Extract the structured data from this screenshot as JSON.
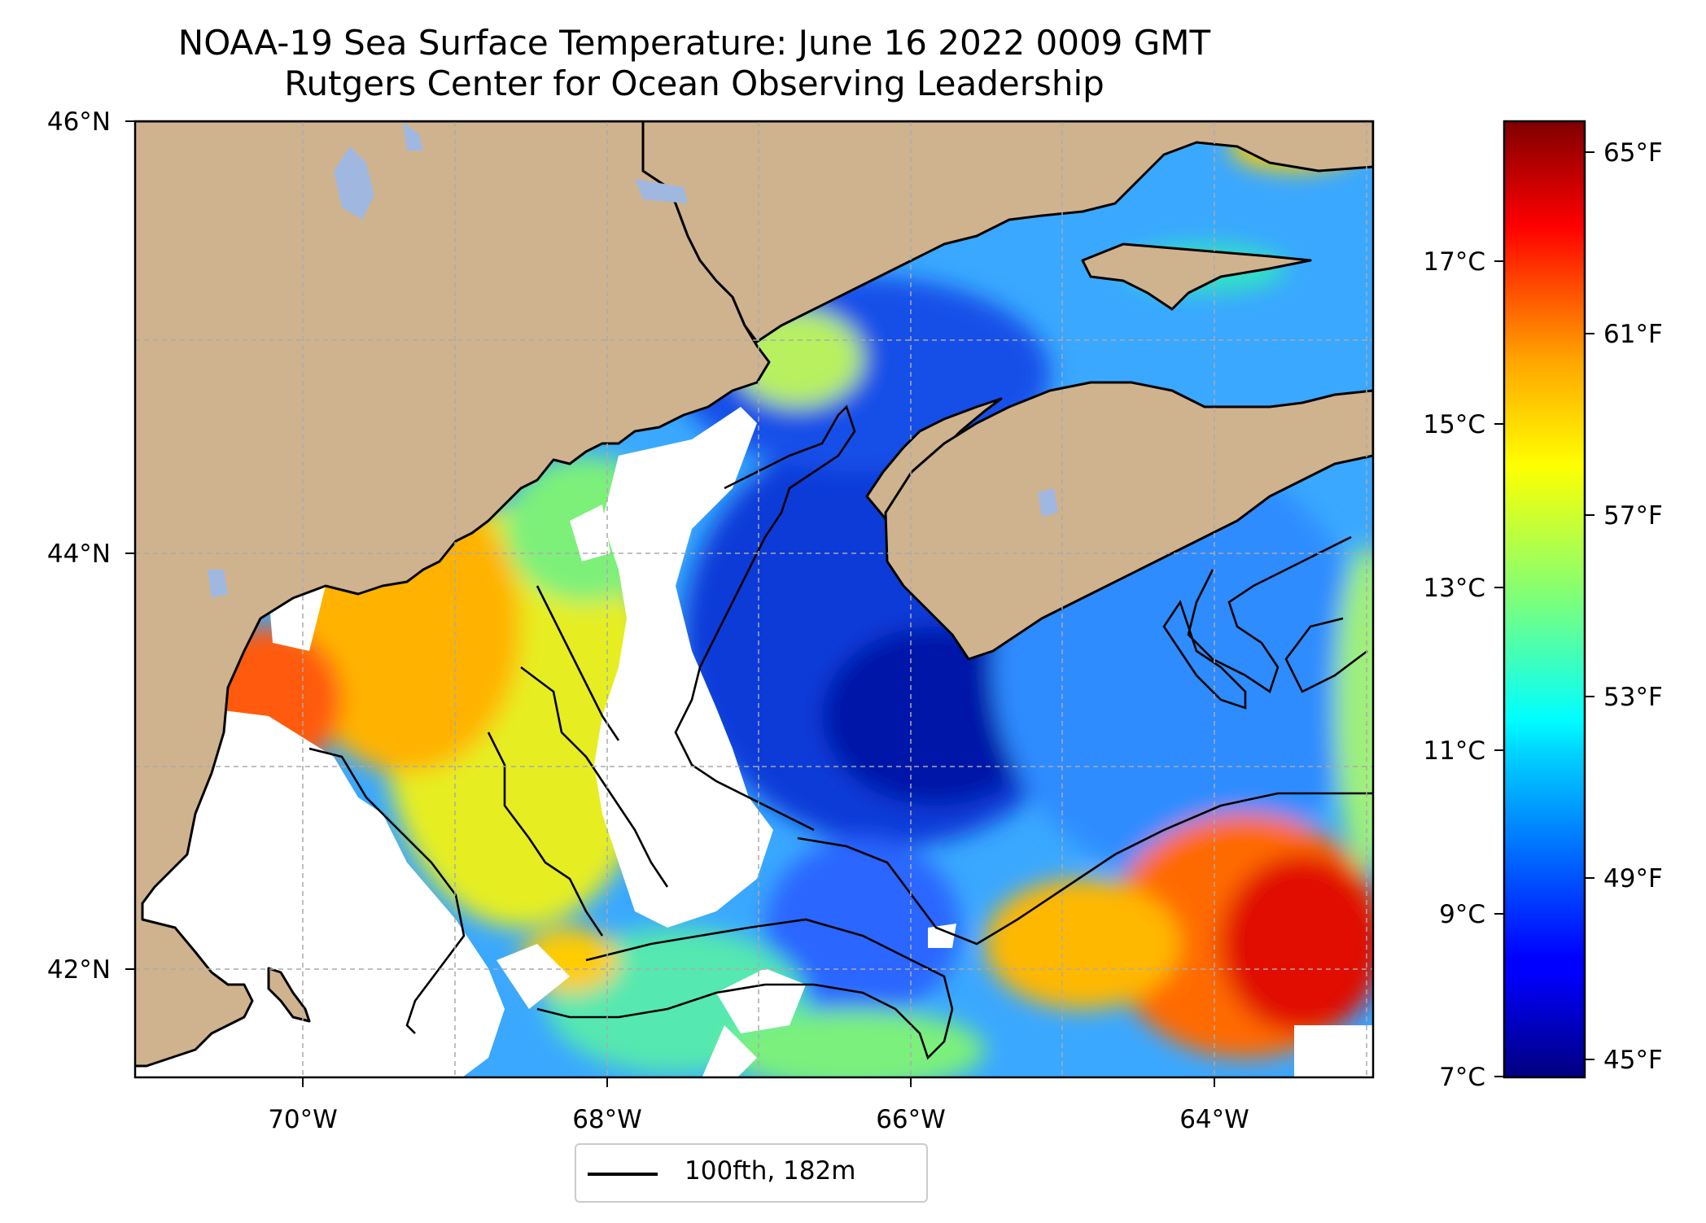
{
  "title": {
    "line1": "NOAA-19 Sea Surface Temperature: June 16 2022 0009 GMT",
    "line2": "Rutgers Center for Ocean Observing Leadership"
  },
  "map": {
    "lon_range": [
      -71.1,
      -62.9
    ],
    "lat_range": [
      41.5,
      46.0
    ],
    "lon_ticks": [
      {
        "value": -70,
        "label": "70°W"
      },
      {
        "value": -68,
        "label": "68°W"
      },
      {
        "value": -66,
        "label": "66°W"
      },
      {
        "value": -64,
        "label": "64°W"
      }
    ],
    "lat_ticks": [
      {
        "value": 46,
        "label": "46°N"
      },
      {
        "value": 44,
        "label": "44°N"
      },
      {
        "value": 42,
        "label": "42°N"
      }
    ],
    "gridlines": true,
    "land_color": "#cfb38f",
    "lake_color": "#a0b8e0",
    "no_data_color": "#ffffff"
  },
  "colorbar": {
    "colormap": "jet",
    "celsius_ticks": [
      {
        "value": 17,
        "label": "17°C"
      },
      {
        "value": 15,
        "label": "15°C"
      },
      {
        "value": 13,
        "label": "13°C"
      },
      {
        "value": 11,
        "label": "11°C"
      },
      {
        "value": 9,
        "label": "9°C"
      },
      {
        "value": 7,
        "label": "7°C"
      }
    ],
    "fahrenheit_ticks": [
      {
        "value": 65,
        "label": "65°F"
      },
      {
        "value": 61,
        "label": "61°F"
      },
      {
        "value": 57,
        "label": "57°F"
      },
      {
        "value": 53,
        "label": "53°F"
      },
      {
        "value": 49,
        "label": "49°F"
      },
      {
        "value": 45,
        "label": "45°F"
      }
    ],
    "range_c": [
      7.0,
      18.7
    ]
  },
  "legend": {
    "entry": "100fth, 182m",
    "line_color": "#000000"
  }
}
